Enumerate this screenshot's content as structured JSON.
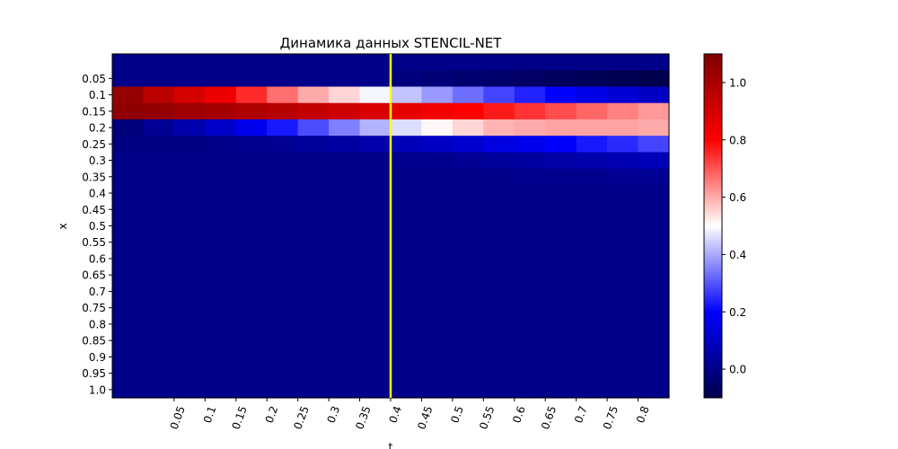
{
  "chart_data": {
    "type": "heatmap",
    "title": "Динамика данных STENCIL-NET",
    "xlabel": "t",
    "ylabel": "x",
    "x_tick_labels": [
      "0.05",
      "0.1",
      "0.15",
      "0.2",
      "0.25",
      "0.3",
      "0.35",
      "0.4",
      "0.45",
      "0.5",
      "0.55",
      "0.6",
      "0.65",
      "0.7",
      "0.75",
      "0.8"
    ],
    "y_tick_labels": [
      "0.05",
      "0.1",
      "0.15",
      "0.2",
      "0.25",
      "0.3",
      "0.35",
      "0.4",
      "0.45",
      "0.5",
      "0.55",
      "0.6",
      "0.65",
      "0.7",
      "0.75",
      "0.8",
      "0.85",
      "0.9",
      "0.95",
      "1.0"
    ],
    "colorbar": {
      "colormap": "seismic",
      "vmin": -0.1,
      "vmax": 1.1,
      "tick_values": [
        0.0,
        0.2,
        0.4,
        0.6,
        0.8,
        1.0
      ],
      "tick_labels": [
        "0.0",
        "0.2",
        "0.4",
        "0.6",
        "0.8",
        "1.0"
      ]
    },
    "vertical_marker": {
      "t": "0.4",
      "color": "#ffff00"
    },
    "values": [
      [
        0.0,
        0.0,
        0.0,
        0.0,
        0.0,
        0.0,
        0.0,
        0.0,
        0.0,
        0.0,
        0.0,
        0.0,
        0.0,
        0.0,
        0.0,
        0.0,
        0.0,
        0.0
      ],
      [
        0.0,
        0.0,
        0.0,
        0.0,
        0.0,
        0.0,
        0.0,
        0.0,
        0.0,
        -0.02,
        -0.03,
        -0.04,
        -0.05,
        -0.06,
        -0.07,
        -0.08,
        -0.09,
        -0.1
      ],
      [
        1.05,
        0.96,
        0.9,
        0.84,
        0.75,
        0.67,
        0.6,
        0.55,
        0.49,
        0.43,
        0.38,
        0.33,
        0.28,
        0.24,
        0.2,
        0.16,
        0.13,
        0.1
      ],
      [
        1.06,
        1.05,
        1.03,
        1.01,
        0.99,
        0.97,
        0.94,
        0.92,
        0.89,
        0.86,
        0.83,
        0.8,
        0.77,
        0.74,
        0.71,
        0.68,
        0.65,
        0.62
      ],
      [
        -0.02,
        0.02,
        0.06,
        0.11,
        0.17,
        0.23,
        0.29,
        0.35,
        0.41,
        0.46,
        0.51,
        0.55,
        0.59,
        0.6,
        0.61,
        0.61,
        0.61,
        0.6
      ],
      [
        -0.01,
        -0.01,
        -0.01,
        0.0,
        0.01,
        0.02,
        0.03,
        0.04,
        0.06,
        0.08,
        0.1,
        0.12,
        0.15,
        0.17,
        0.2,
        0.23,
        0.25,
        0.28
      ],
      [
        0.0,
        0.0,
        0.0,
        0.0,
        0.0,
        0.0,
        0.0,
        0.0,
        0.0,
        0.01,
        0.01,
        0.02,
        0.03,
        0.04,
        0.05,
        0.06,
        0.07,
        0.08
      ],
      [
        0.0,
        0.0,
        0.0,
        0.0,
        0.0,
        0.0,
        0.0,
        0.0,
        0.0,
        0.0,
        0.0,
        0.0,
        0.0,
        0.01,
        0.01,
        0.01,
        0.02,
        0.02
      ],
      [
        0.0,
        0.0,
        0.0,
        0.0,
        0.0,
        0.0,
        0.0,
        0.0,
        0.0,
        0.0,
        0.0,
        0.0,
        0.0,
        0.0,
        0.0,
        0.0,
        0.0,
        0.0
      ],
      [
        0.0,
        0.0,
        0.0,
        0.0,
        0.0,
        0.0,
        0.0,
        0.0,
        0.0,
        0.0,
        0.0,
        0.0,
        0.0,
        0.0,
        0.0,
        0.0,
        0.0,
        0.0
      ],
      [
        0.0,
        0.0,
        0.0,
        0.0,
        0.0,
        0.0,
        0.0,
        0.0,
        0.0,
        0.0,
        0.0,
        0.0,
        0.0,
        0.0,
        0.0,
        0.0,
        0.0,
        0.0
      ],
      [
        0.0,
        0.0,
        0.0,
        0.0,
        0.0,
        0.0,
        0.0,
        0.0,
        0.0,
        0.0,
        0.0,
        0.0,
        0.0,
        0.0,
        0.0,
        0.0,
        0.0,
        0.0
      ],
      [
        0.0,
        0.0,
        0.0,
        0.0,
        0.0,
        0.0,
        0.0,
        0.0,
        0.0,
        0.0,
        0.0,
        0.0,
        0.0,
        0.0,
        0.0,
        0.0,
        0.0,
        0.0
      ],
      [
        0.0,
        0.0,
        0.0,
        0.0,
        0.0,
        0.0,
        0.0,
        0.0,
        0.0,
        0.0,
        0.0,
        0.0,
        0.0,
        0.0,
        0.0,
        0.0,
        0.0,
        0.0
      ],
      [
        0.0,
        0.0,
        0.0,
        0.0,
        0.0,
        0.0,
        0.0,
        0.0,
        0.0,
        0.0,
        0.0,
        0.0,
        0.0,
        0.0,
        0.0,
        0.0,
        0.0,
        0.0
      ],
      [
        0.0,
        0.0,
        0.0,
        0.0,
        0.0,
        0.0,
        0.0,
        0.0,
        0.0,
        0.0,
        0.0,
        0.0,
        0.0,
        0.0,
        0.0,
        0.0,
        0.0,
        0.0
      ],
      [
        0.0,
        0.0,
        0.0,
        0.0,
        0.0,
        0.0,
        0.0,
        0.0,
        0.0,
        0.0,
        0.0,
        0.0,
        0.0,
        0.0,
        0.0,
        0.0,
        0.0,
        0.0
      ],
      [
        0.0,
        0.0,
        0.0,
        0.0,
        0.0,
        0.0,
        0.0,
        0.0,
        0.0,
        0.0,
        0.0,
        0.0,
        0.0,
        0.0,
        0.0,
        0.0,
        0.0,
        0.0
      ],
      [
        0.0,
        0.0,
        0.0,
        0.0,
        0.0,
        0.0,
        0.0,
        0.0,
        0.0,
        0.0,
        0.0,
        0.0,
        0.0,
        0.0,
        0.0,
        0.0,
        0.0,
        0.0
      ],
      [
        0.0,
        0.0,
        0.0,
        0.0,
        0.0,
        0.0,
        0.0,
        0.0,
        0.0,
        0.0,
        0.0,
        0.0,
        0.0,
        0.0,
        0.0,
        0.0,
        0.0,
        0.0
      ],
      [
        0.0,
        0.0,
        0.0,
        0.0,
        0.0,
        0.0,
        0.0,
        0.0,
        0.0,
        0.0,
        0.0,
        0.0,
        0.0,
        0.0,
        0.0,
        0.0,
        0.0,
        0.0
      ]
    ]
  }
}
